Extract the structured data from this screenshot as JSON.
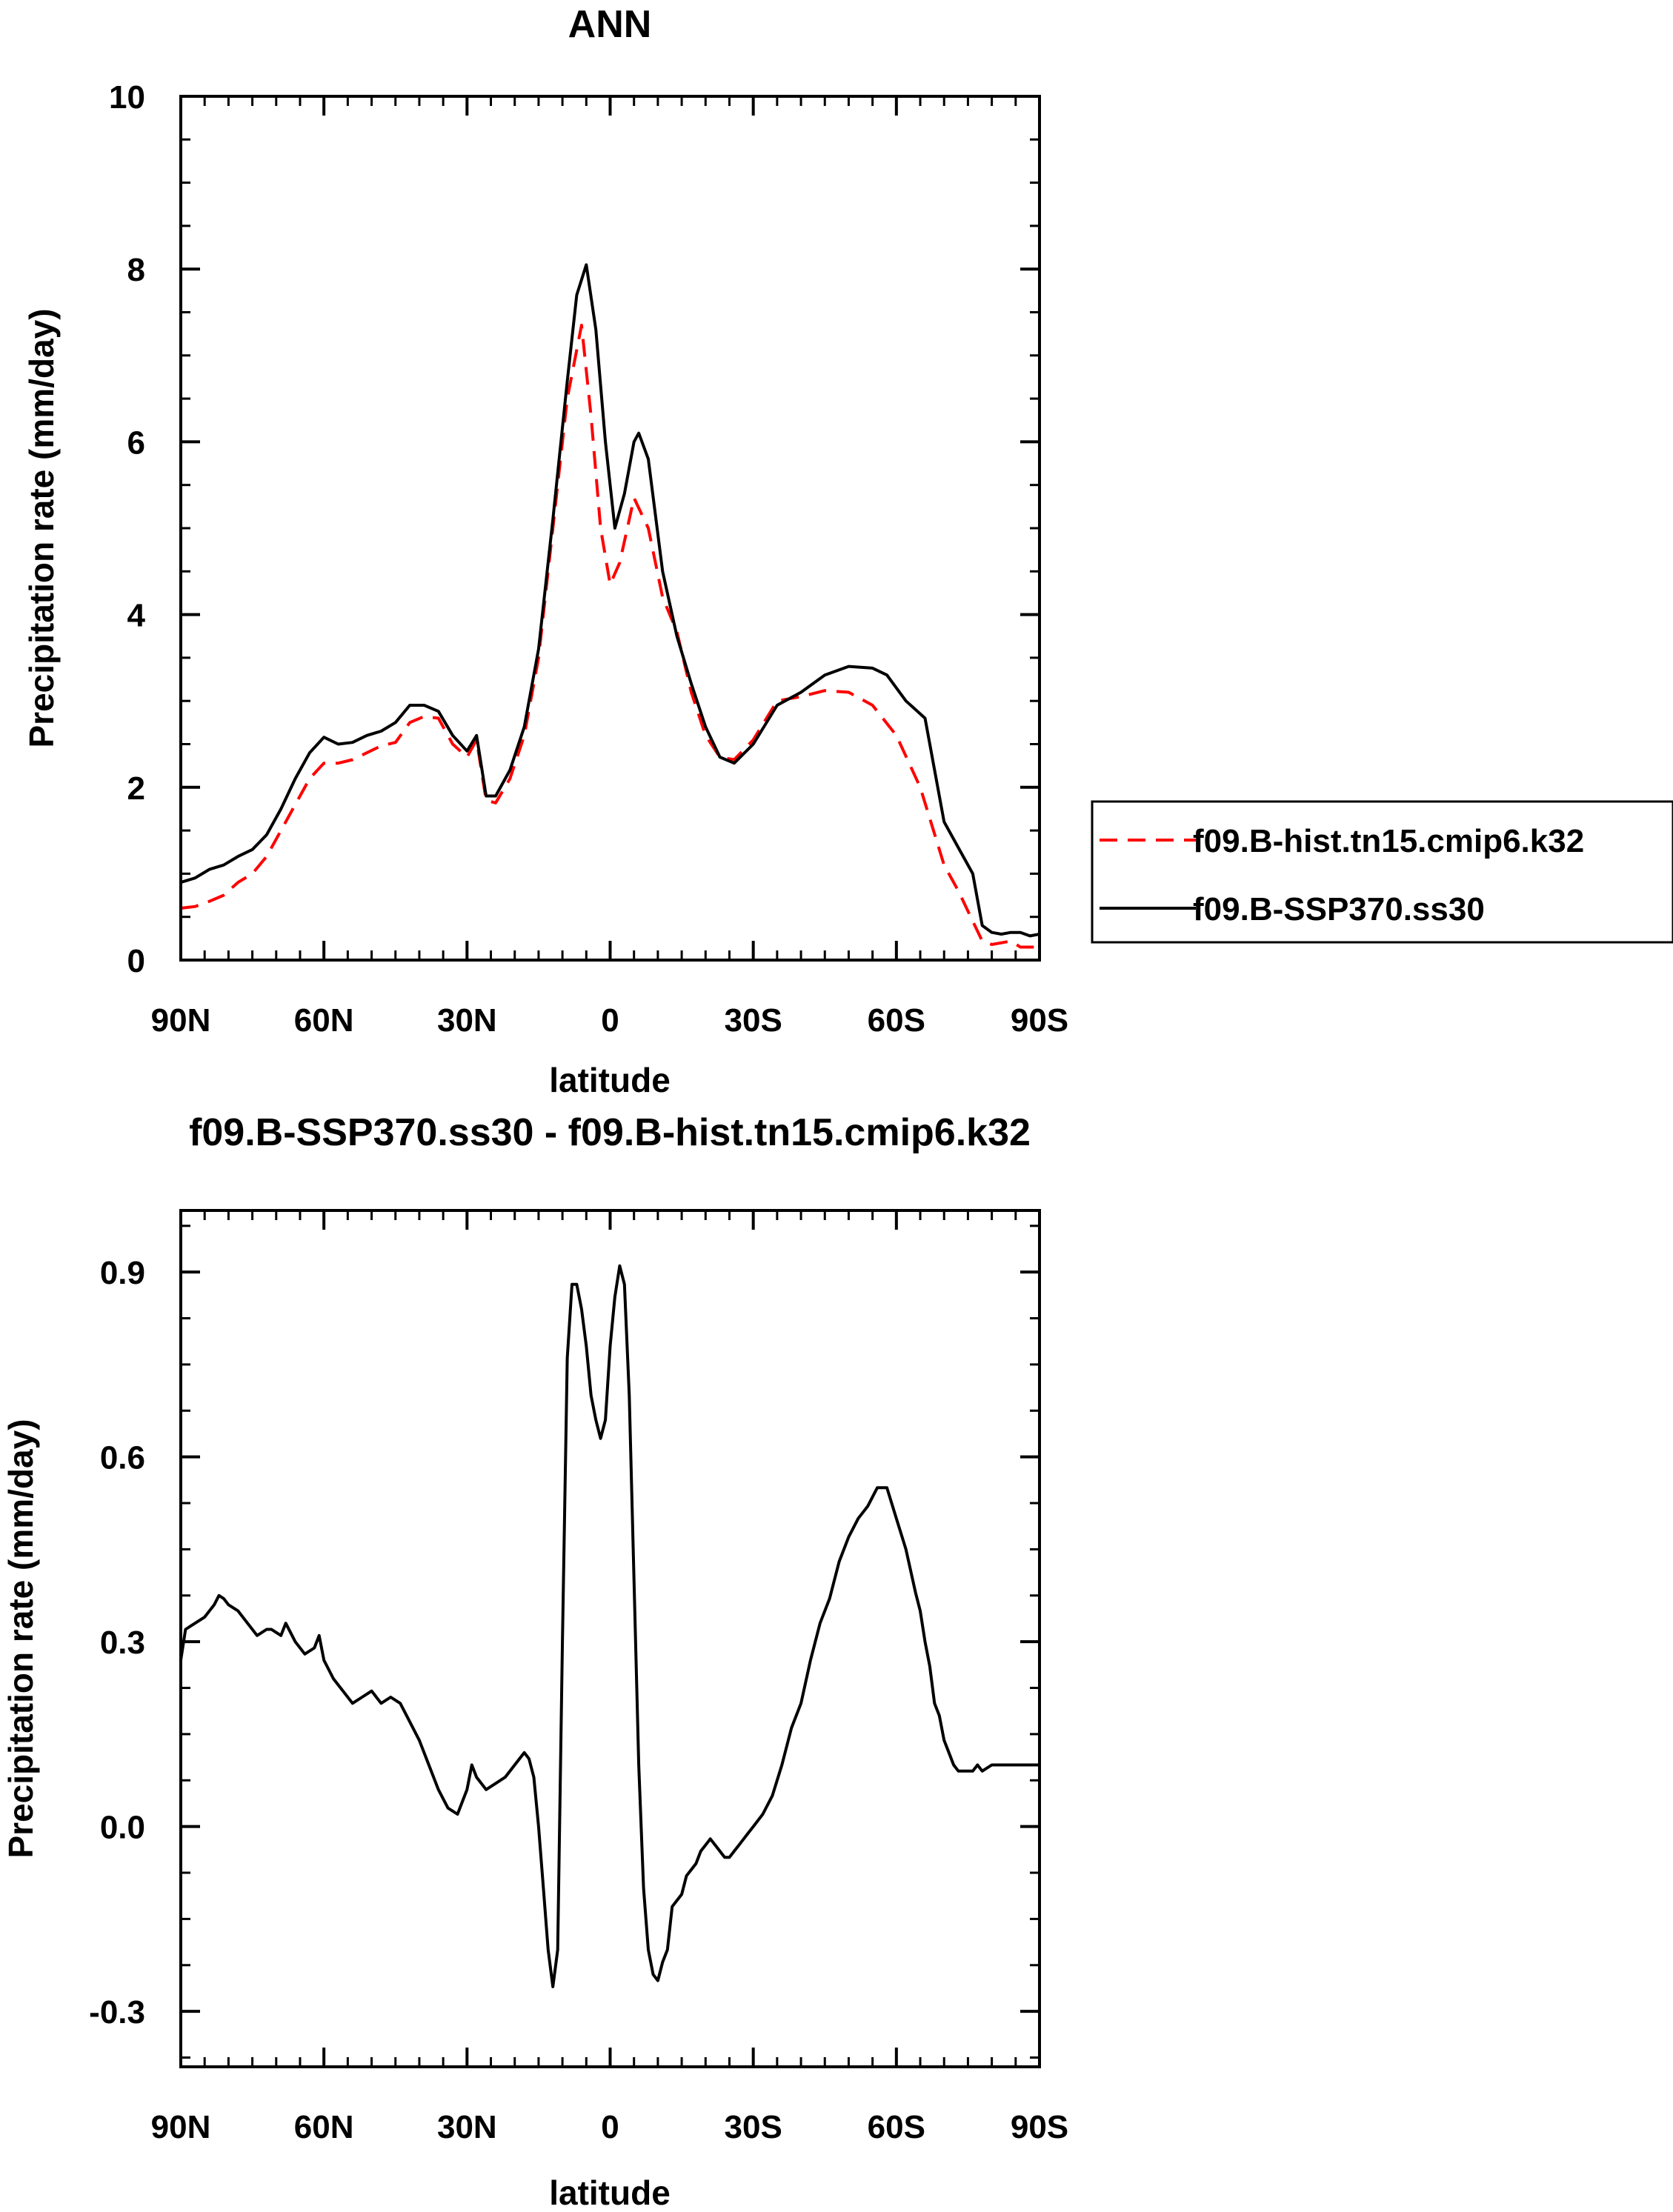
{
  "chart_data": [
    {
      "type": "line",
      "title": "ANN",
      "xlabel": "latitude",
      "ylabel": "Precipitation rate (mm/day)",
      "xlim": [
        90,
        -90
      ],
      "ylim": [
        0,
        10
      ],
      "x_ticks": [
        90,
        60,
        30,
        0,
        -30,
        -60,
        -90
      ],
      "x_tick_labels": [
        "90N",
        "60N",
        "30N",
        "0",
        "30S",
        "60S",
        "90S"
      ],
      "y_ticks": [
        0,
        2,
        4,
        6,
        8,
        10
      ],
      "y_tick_labels": [
        "0",
        "2",
        "4",
        "6",
        "8",
        "10"
      ],
      "grid": false,
      "legend_position": "right-outside",
      "series": [
        {
          "name": "f09.B-hist.tn15.cmip6.k32",
          "color": "#ff0000",
          "dash": "dashed",
          "x": [
            90,
            87,
            84,
            81,
            78,
            75,
            72,
            69,
            66,
            63,
            60,
            57,
            54,
            51,
            48,
            45,
            42,
            39,
            36,
            33,
            30,
            28,
            26,
            24,
            21,
            18,
            15,
            12,
            9,
            6,
            4,
            2,
            0,
            -2,
            -5,
            -8,
            -11,
            -14,
            -17,
            -20,
            -23,
            -26,
            -30,
            -35,
            -40,
            -45,
            -50,
            -55,
            -60,
            -65,
            -70,
            -73,
            -76,
            -78,
            -80,
            -82,
            -84,
            -86,
            -88,
            -90
          ],
          "y": [
            0.6,
            0.62,
            0.68,
            0.75,
            0.9,
            1.0,
            1.2,
            1.5,
            1.8,
            2.1,
            2.28,
            2.28,
            2.32,
            2.4,
            2.48,
            2.52,
            2.75,
            2.82,
            2.8,
            2.5,
            2.35,
            2.55,
            1.85,
            1.82,
            2.1,
            2.6,
            3.5,
            5.0,
            6.5,
            7.35,
            6.3,
            5.0,
            4.35,
            4.6,
            5.35,
            5.0,
            4.2,
            3.8,
            3.1,
            2.6,
            2.35,
            2.32,
            2.55,
            3.0,
            3.05,
            3.12,
            3.1,
            2.95,
            2.6,
            2.0,
            1.1,
            0.8,
            0.45,
            0.22,
            0.18,
            0.2,
            0.22,
            0.15,
            0.15,
            0.15
          ]
        },
        {
          "name": "f09.B-SSP370.ss30",
          "color": "#000000",
          "dash": "solid",
          "x": [
            90,
            87,
            84,
            81,
            78,
            75,
            72,
            69,
            66,
            63,
            60,
            57,
            54,
            51,
            48,
            45,
            42,
            39,
            36,
            33,
            30,
            28,
            26,
            24,
            21,
            18,
            15,
            12,
            9,
            7,
            5,
            3,
            1,
            -1,
            -3,
            -5,
            -6,
            -8,
            -11,
            -14,
            -17,
            -20,
            -23,
            -26,
            -30,
            -35,
            -40,
            -45,
            -50,
            -55,
            -58,
            -62,
            -66,
            -70,
            -73,
            -76,
            -78,
            -80,
            -82,
            -84,
            -86,
            -88,
            -90
          ],
          "y": [
            0.9,
            0.95,
            1.05,
            1.1,
            1.2,
            1.28,
            1.45,
            1.75,
            2.1,
            2.4,
            2.58,
            2.5,
            2.52,
            2.6,
            2.65,
            2.75,
            2.95,
            2.95,
            2.88,
            2.6,
            2.42,
            2.6,
            1.9,
            1.9,
            2.2,
            2.7,
            3.6,
            5.1,
            6.7,
            7.7,
            8.05,
            7.3,
            6.0,
            5.0,
            5.4,
            6.0,
            6.1,
            5.8,
            4.5,
            3.75,
            3.2,
            2.7,
            2.35,
            2.28,
            2.5,
            2.95,
            3.1,
            3.3,
            3.4,
            3.38,
            3.3,
            3.0,
            2.8,
            1.6,
            1.3,
            1.0,
            0.4,
            0.32,
            0.3,
            0.32,
            0.32,
            0.28,
            0.3
          ]
        }
      ]
    },
    {
      "type": "line",
      "title": "f09.B-SSP370.ss30 - f09.B-hist.tn15.cmip6.k32",
      "xlabel": "latitude",
      "ylabel": "Precipitation rate (mm/day)",
      "xlim": [
        90,
        -90
      ],
      "ylim": [
        -0.39,
        1.0
      ],
      "x_ticks": [
        90,
        60,
        30,
        0,
        -30,
        -60,
        -90
      ],
      "x_tick_labels": [
        "90N",
        "60N",
        "30N",
        "0",
        "30S",
        "60S",
        "90S"
      ],
      "y_ticks": [
        -0.3,
        0.0,
        0.3,
        0.6,
        0.9
      ],
      "y_tick_labels": [
        "-0.3",
        "0.0",
        "0.3",
        "0.6",
        "0.9"
      ],
      "grid": false,
      "series": [
        {
          "name": "f09.B-SSP370.ss30 - f09.B-hist.tn15.cmip6.k32",
          "color": "#000000",
          "dash": "solid",
          "x": [
            90,
            89,
            87,
            85,
            83,
            82,
            81,
            80,
            78,
            76,
            74,
            72,
            71,
            69,
            68,
            66,
            64,
            62,
            61,
            60,
            58,
            56,
            54,
            52,
            50,
            48,
            46,
            44,
            42,
            40,
            38,
            36,
            34,
            32,
            31,
            30,
            29,
            28,
            26,
            24,
            22,
            20,
            18,
            17,
            16,
            15,
            14,
            13,
            12,
            11,
            10,
            9,
            8,
            7,
            6,
            5,
            4,
            3,
            2,
            1,
            0,
            -1,
            -2,
            -3,
            -4,
            -5,
            -6,
            -7,
            -8,
            -9,
            -10,
            -11,
            -12,
            -13,
            -14,
            -15,
            -16,
            -17,
            -18,
            -19,
            -20,
            -21,
            -22,
            -23,
            -24,
            -25,
            -26,
            -27,
            -28,
            -29,
            -30,
            -32,
            -34,
            -36,
            -38,
            -40,
            -42,
            -44,
            -46,
            -48,
            -50,
            -52,
            -54,
            -56,
            -58,
            -60,
            -62,
            -64,
            -65,
            -66,
            -67,
            -68,
            -69,
            -70,
            -71,
            -72,
            -73,
            -74,
            -75,
            -76,
            -77,
            -78,
            -80,
            -82,
            -84,
            -86,
            -87,
            -88,
            -90
          ],
          "y": [
            0.27,
            0.32,
            0.33,
            0.34,
            0.36,
            0.375,
            0.37,
            0.36,
            0.35,
            0.33,
            0.31,
            0.32,
            0.32,
            0.31,
            0.33,
            0.3,
            0.28,
            0.29,
            0.31,
            0.27,
            0.24,
            0.22,
            0.2,
            0.21,
            0.22,
            0.2,
            0.21,
            0.2,
            0.17,
            0.14,
            0.1,
            0.06,
            0.03,
            0.02,
            0.04,
            0.06,
            0.1,
            0.08,
            0.06,
            0.07,
            0.08,
            0.1,
            0.12,
            0.11,
            0.08,
            0.0,
            -0.1,
            -0.2,
            -0.26,
            -0.2,
            0.3,
            0.76,
            0.88,
            0.88,
            0.84,
            0.78,
            0.7,
            0.66,
            0.63,
            0.66,
            0.78,
            0.86,
            0.91,
            0.88,
            0.7,
            0.4,
            0.1,
            -0.1,
            -0.2,
            -0.24,
            -0.25,
            -0.22,
            -0.2,
            -0.13,
            -0.12,
            -0.11,
            -0.08,
            -0.07,
            -0.06,
            -0.04,
            -0.03,
            -0.02,
            -0.03,
            -0.04,
            -0.05,
            -0.05,
            -0.04,
            -0.03,
            -0.02,
            -0.01,
            0.0,
            0.02,
            0.05,
            0.1,
            0.16,
            0.2,
            0.27,
            0.33,
            0.37,
            0.43,
            0.47,
            0.5,
            0.52,
            0.55,
            0.55,
            0.5,
            0.45,
            0.38,
            0.35,
            0.3,
            0.26,
            0.2,
            0.18,
            0.14,
            0.12,
            0.1,
            0.09,
            0.09,
            0.09,
            0.09,
            0.1,
            0.09,
            0.1,
            0.1,
            0.1,
            0.1,
            0.1,
            0.1,
            0.1
          ]
        }
      ]
    }
  ]
}
